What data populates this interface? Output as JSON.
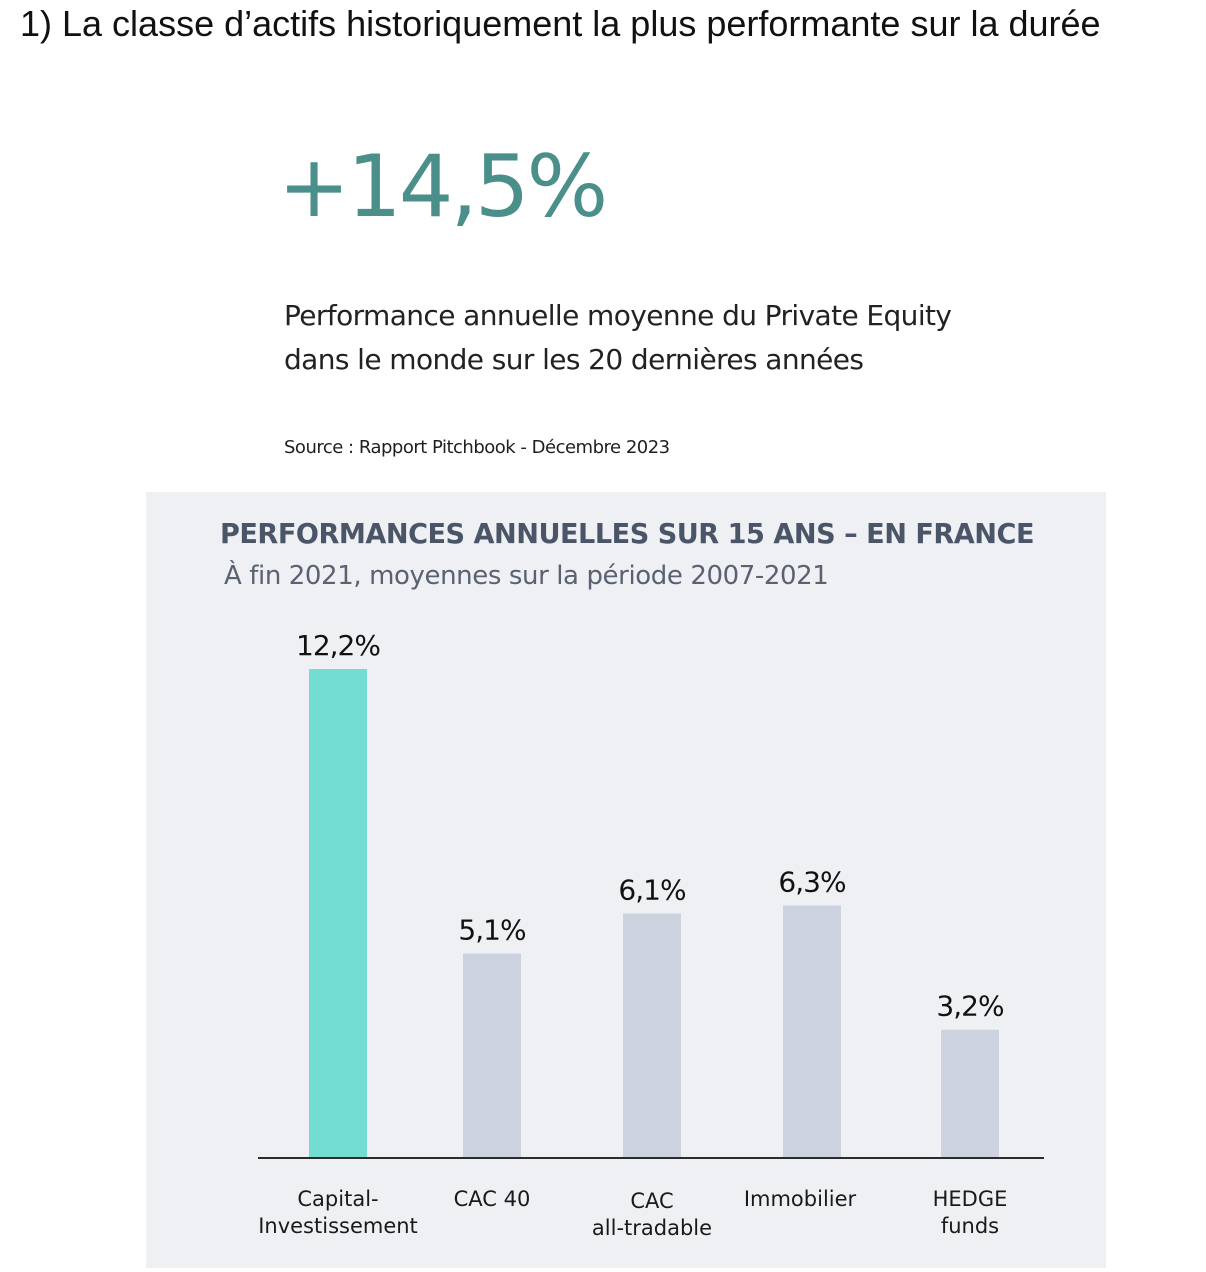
{
  "heading": "1) La classe d’actifs historiquement la plus performante sur la durée",
  "highlight": {
    "stat": "+14,5%",
    "description_line1": "Performance annuelle moyenne du Private Equity",
    "description_line2": "dans le monde sur les 20 dernières années",
    "source": "Source : Rapport Pitchbook - Décembre 2023"
  },
  "colors": {
    "highlight_bar": "#74ddd2",
    "other_bars": "#cdd3de",
    "stat_color": "#4a8f8a",
    "panel_background": "#eef0f4"
  },
  "chart_data": {
    "type": "bar",
    "title": "PERFORMANCES ANNUELLES SUR 15 ANS – EN FRANCE",
    "subtitle": "À fin 2021, moyennes sur la période 2007-2021",
    "categories": [
      [
        "Capital-",
        "Investissement"
      ],
      [
        "CAC 40"
      ],
      [
        "CAC",
        "all-tradable"
      ],
      [
        "Immobilier"
      ],
      [
        "HEDGE",
        "funds"
      ]
    ],
    "values": [
      12.2,
      5.1,
      6.1,
      6.3,
      3.2
    ],
    "value_labels": [
      "12,2%",
      "5,1%",
      "6,1%",
      "6,3%",
      "3,2%"
    ],
    "highlight_index": 0,
    "ylim": [
      0,
      12.2
    ],
    "grid": false,
    "xlabel": "",
    "ylabel": ""
  }
}
